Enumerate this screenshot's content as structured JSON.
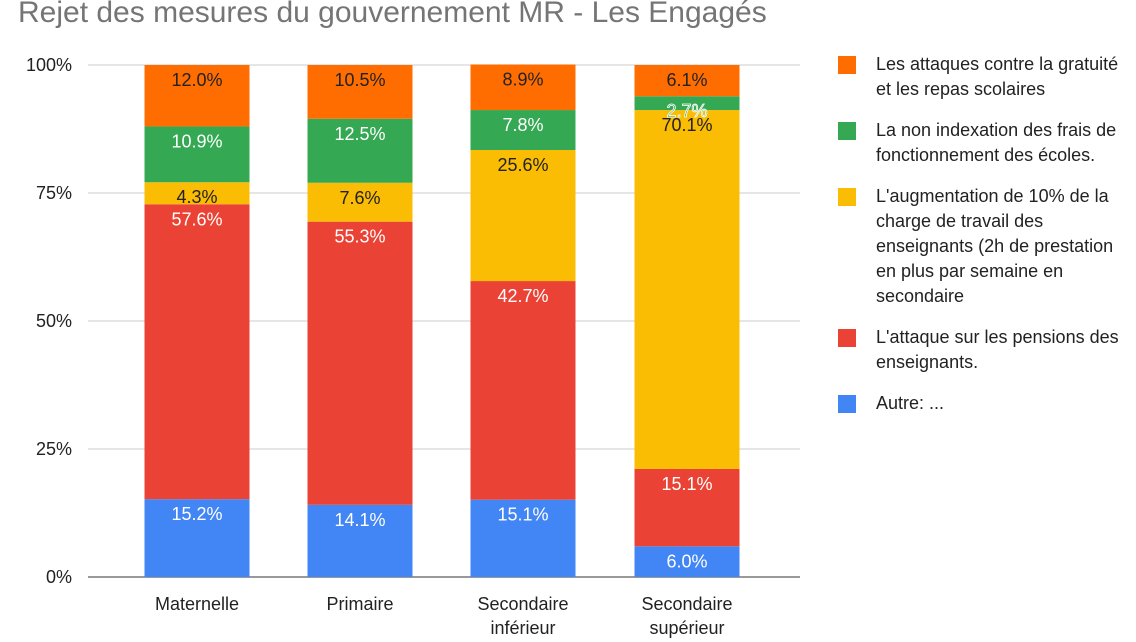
{
  "chart_data": {
    "type": "stacked_bar",
    "title": "Rejet des mesures du gouvernement MR - Les Engagés",
    "categories": [
      "Maternelle",
      "Primaire",
      "Secondaire inférieur",
      "Secondaire supérieur"
    ],
    "series": [
      {
        "name": "Autre: ...",
        "color": "#4285f4",
        "values": [
          15.2,
          14.1,
          15.1,
          6.0
        ],
        "value_labels": [
          "15.2%",
          "14.1%",
          "15.1%",
          "6.0%"
        ]
      },
      {
        "name": "L'attaque sur les pensions des enseignants.",
        "color": "#ea4335",
        "values": [
          57.6,
          55.3,
          42.7,
          15.1
        ],
        "value_labels": [
          "57.6%",
          "55.3%",
          "42.7%",
          "15.1%"
        ]
      },
      {
        "name": "L'augmentation de 10% de la charge de travail des enseignants (2h de prestation en plus par semaine en secondaire",
        "color": "#fbbc04",
        "values": [
          4.3,
          7.6,
          25.6,
          70.1
        ],
        "value_labels": [
          "4.3%",
          "7.6%",
          "25.6%",
          "70.1%"
        ]
      },
      {
        "name": "La non indexation des frais de fonctionnement des écoles.",
        "color": "#34a853",
        "values": [
          10.9,
          12.5,
          7.8,
          2.7
        ],
        "value_labels": [
          "10.9%",
          "12.5%",
          "7.8%",
          "2.7%"
        ]
      },
      {
        "name": "Les attaques contre la gratuité et les repas scolaires",
        "color": "#ff6d01",
        "values": [
          12.0,
          10.5,
          8.9,
          6.1
        ],
        "value_labels": [
          "12.0%",
          "10.5%",
          "8.9%",
          "6.1%"
        ]
      }
    ],
    "ylim": [
      0,
      100
    ],
    "yticks": [
      {
        "value": 0,
        "label": "0%"
      },
      {
        "value": 25,
        "label": "25%"
      },
      {
        "value": 50,
        "label": "50%"
      },
      {
        "value": 75,
        "label": "75%"
      },
      {
        "value": 100,
        "label": "100%"
      }
    ],
    "grid": true
  }
}
